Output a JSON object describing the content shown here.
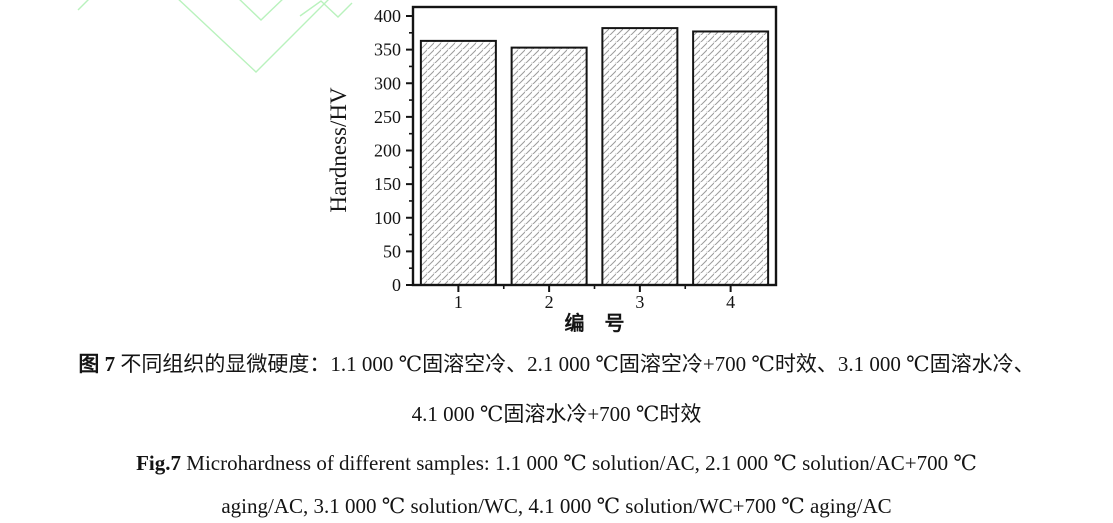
{
  "figure": {
    "watermark_color": "#b9f2bd",
    "axis_color": "#141414",
    "hatch_color": "#9b9b9b"
  },
  "chart_data": {
    "type": "bar",
    "categories": [
      "1",
      "2",
      "3",
      "4"
    ],
    "values": [
      363,
      353,
      382,
      377
    ],
    "title": "",
    "xlabel": "编　号",
    "ylabel": "Hardness/HV",
    "ylim": [
      0,
      400
    ],
    "ytick_step": 50,
    "yminor_step": 25,
    "xlim": [
      0.5,
      4.5
    ],
    "grid": false,
    "legend": null,
    "bar_style": "diagonal-hatch, black edge, white fill"
  },
  "captions": {
    "zh_line1_bold": "图 7",
    "zh_line1_rest": " 不同组织的显微硬度：1.1 000 ℃固溶空冷、2.1 000 ℃固溶空冷+700 ℃时效、3.1 000 ℃固溶水冷、",
    "zh_line2": "4.1 000 ℃固溶水冷+700 ℃时效",
    "en_line1_bold": "Fig.7",
    "en_line1_rest": " Microhardness of different samples: 1.1 000  ℃  solution/AC, 2.1 000  ℃  solution/AC+700  ℃",
    "en_line2": "aging/AC, 3.1 000  ℃  solution/WC, 4.1 000  ℃  solution/WC+700  ℃  aging/AC"
  }
}
